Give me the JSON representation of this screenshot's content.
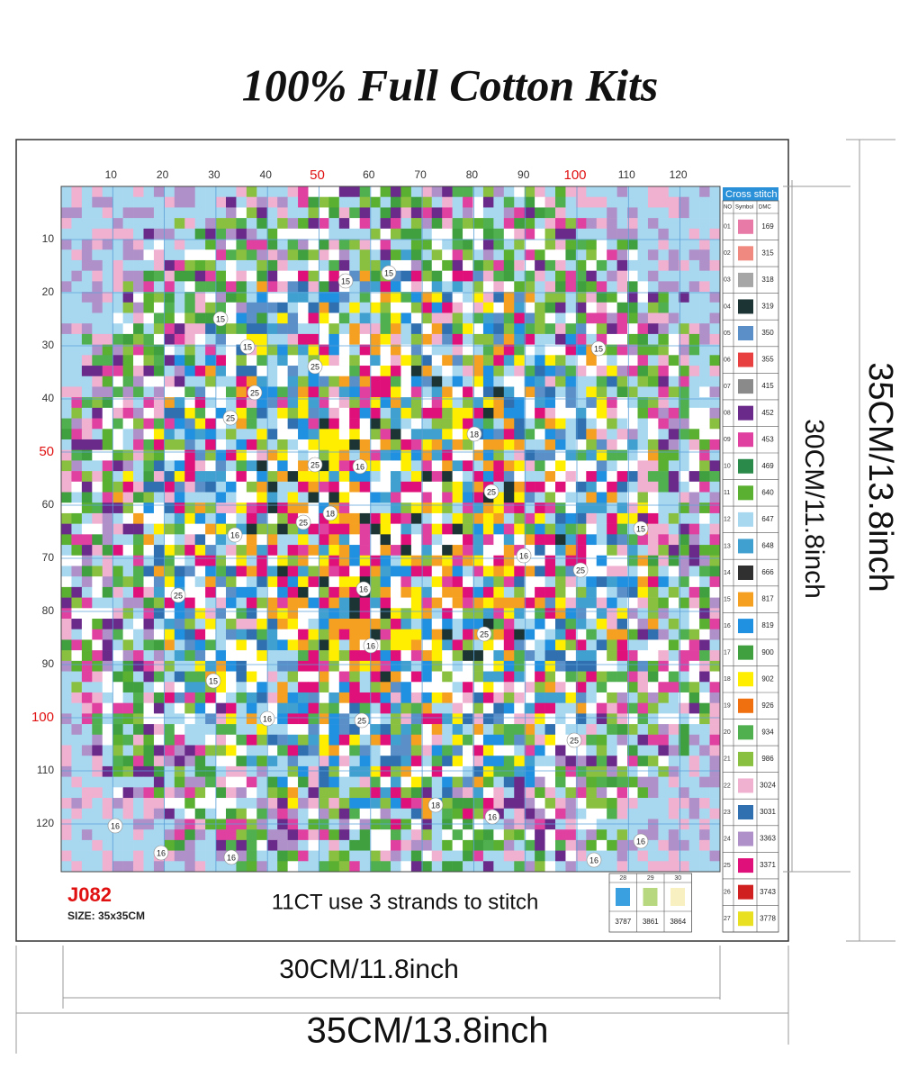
{
  "title": "100% Full Cotton Kits",
  "pattern": {
    "top_ticks": [
      10,
      20,
      30,
      40,
      50,
      60,
      70,
      80,
      90,
      100,
      110,
      120
    ],
    "left_ticks": [
      10,
      20,
      30,
      40,
      50,
      60,
      70,
      80,
      90,
      100,
      110,
      120
    ],
    "highlight_every": 50,
    "highlight_color": "#e01010",
    "markers": [
      "15",
      "15",
      "15",
      "15",
      "15",
      "15",
      "15",
      "25",
      "25",
      "25",
      "25",
      "25",
      "25",
      "25",
      "25",
      "25",
      "25",
      "25",
      "16",
      "16",
      "16",
      "16",
      "16",
      "16",
      "16",
      "16",
      "16",
      "16",
      "16",
      "16",
      "18",
      "18",
      "18"
    ]
  },
  "legend": {
    "title": "Cross stitch",
    "headers": [
      "NO",
      "Symbol",
      "DMC"
    ],
    "rows": [
      {
        "no": "01",
        "dmc": "169",
        "color": "#e87aa8"
      },
      {
        "no": "02",
        "dmc": "315",
        "color": "#f08a80"
      },
      {
        "no": "03",
        "dmc": "318",
        "color": "#a6a6a6"
      },
      {
        "no": "04",
        "dmc": "319",
        "color": "#1c3434"
      },
      {
        "no": "05",
        "dmc": "350",
        "color": "#5b8fc8"
      },
      {
        "no": "06",
        "dmc": "355",
        "color": "#e84040"
      },
      {
        "no": "07",
        "dmc": "415",
        "color": "#8a8a8a"
      },
      {
        "no": "08",
        "dmc": "452",
        "color": "#6a2a8a"
      },
      {
        "no": "09",
        "dmc": "453",
        "color": "#e040a0"
      },
      {
        "no": "10",
        "dmc": "469",
        "color": "#2a8a4a"
      },
      {
        "no": "11",
        "dmc": "640",
        "color": "#5ab030"
      },
      {
        "no": "12",
        "dmc": "647",
        "color": "#a8d8f0"
      },
      {
        "no": "13",
        "dmc": "648",
        "color": "#40a0d0"
      },
      {
        "no": "14",
        "dmc": "666",
        "color": "#303030"
      },
      {
        "no": "15",
        "dmc": "817",
        "color": "#f5a020"
      },
      {
        "no": "16",
        "dmc": "819",
        "color": "#2090e0"
      },
      {
        "no": "17",
        "dmc": "900",
        "color": "#40a040"
      },
      {
        "no": "18",
        "dmc": "902",
        "color": "#ffee00"
      },
      {
        "no": "19",
        "dmc": "926",
        "color": "#f07010"
      },
      {
        "no": "20",
        "dmc": "934",
        "color": "#50b050"
      },
      {
        "no": "21",
        "dmc": "986",
        "color": "#8ac040"
      },
      {
        "no": "22",
        "dmc": "3024",
        "color": "#f0b0d0"
      },
      {
        "no": "23",
        "dmc": "3031",
        "color": "#3070b0"
      },
      {
        "no": "24",
        "dmc": "3363",
        "color": "#b090c8"
      },
      {
        "no": "25",
        "dmc": "3371",
        "color": "#e0107a"
      },
      {
        "no": "26",
        "dmc": "3743",
        "color": "#d02020"
      },
      {
        "no": "27",
        "dmc": "3778",
        "color": "#e8e020"
      }
    ]
  },
  "extra_legend": {
    "rows": [
      {
        "no": "28",
        "dmc": "3787",
        "color": "#3aa0e0"
      },
      {
        "no": "29",
        "dmc": "3861",
        "color": "#b8d880"
      },
      {
        "no": "30",
        "dmc": "3864",
        "color": "#f8f0c0"
      }
    ]
  },
  "code": "J082",
  "size": "SIZE:  35x35CM",
  "note": "11CT use 3 strands to stitch",
  "dimensions": {
    "inner_width": "30CM/11.8inch",
    "outer_width": "35CM/13.8inch",
    "inner_height": "30CM/11.8inch",
    "outer_height": "35CM/13.8inch"
  }
}
